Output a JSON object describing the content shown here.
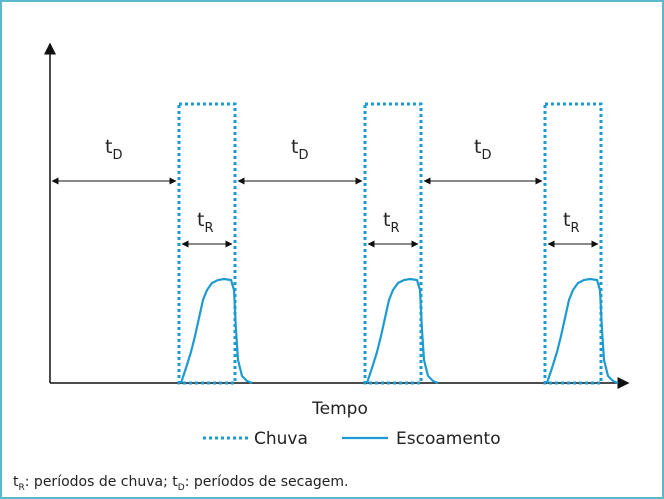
{
  "axes": {
    "x_label": "Tempo"
  },
  "periods": {
    "dry_symbol": "t",
    "dry_subscript": "D",
    "rain_symbol": "t",
    "rain_subscript": "R"
  },
  "legend": {
    "rain_label": "Chuva",
    "runoff_label": "Escoamento"
  },
  "colors": {
    "series": "#1d9bd0",
    "axis": "#111111",
    "frame": "#5bb8cc"
  },
  "footnote": {
    "sym1": "t",
    "sub1": "R",
    "text1": ": períodos de chuva; ",
    "sym2": "t",
    "sub2": "D",
    "text2": ": períodos de secagem."
  }
}
